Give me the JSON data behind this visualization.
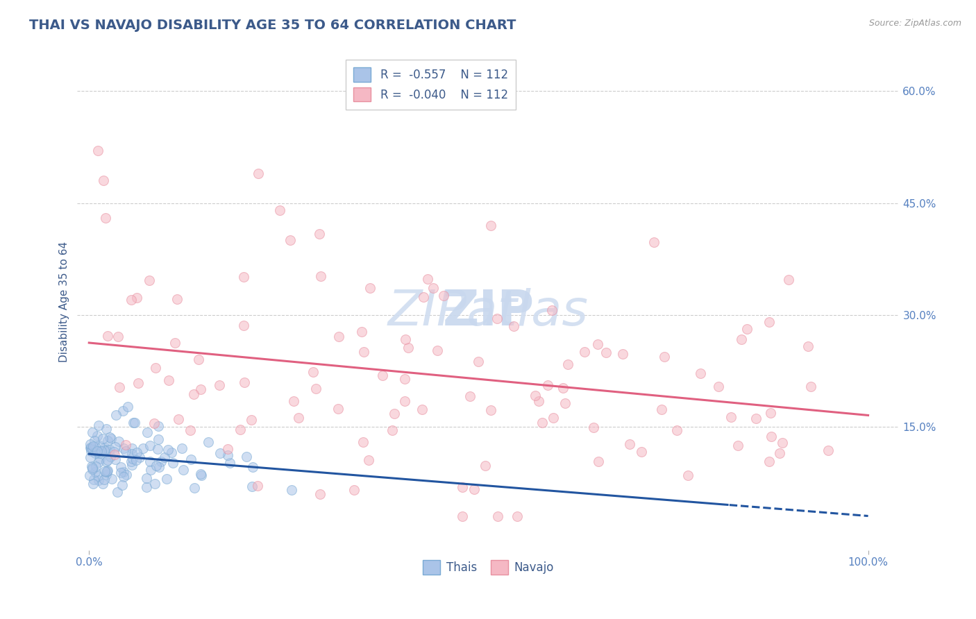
{
  "title": "THAI VS NAVAJO DISABILITY AGE 35 TO 64 CORRELATION CHART",
  "source_text": "Source: ZipAtlas.com",
  "ylabel": "Disability Age 35 to 64",
  "title_color": "#3c5a8a",
  "title_fontsize": 14,
  "background_color": "#ffffff",
  "grid_color": "#cccccc",
  "thai_color": "#aac4e8",
  "thai_edge_color": "#7aaad4",
  "navajo_color": "#f5b8c4",
  "navajo_edge_color": "#e890a0",
  "thai_line_color": "#2255a0",
  "navajo_line_color": "#e06080",
  "axis_label_color": "#5580c0",
  "R_thai": -0.557,
  "R_navajo": -0.04,
  "N_thai": 112,
  "N_navajo": 112,
  "legend_label_thai": "Thais",
  "legend_label_navajo": "Navajo",
  "marker_size": 100,
  "marker_alpha": 0.55,
  "watermark_color": "#d0ddf0",
  "watermark_alpha": 0.5
}
